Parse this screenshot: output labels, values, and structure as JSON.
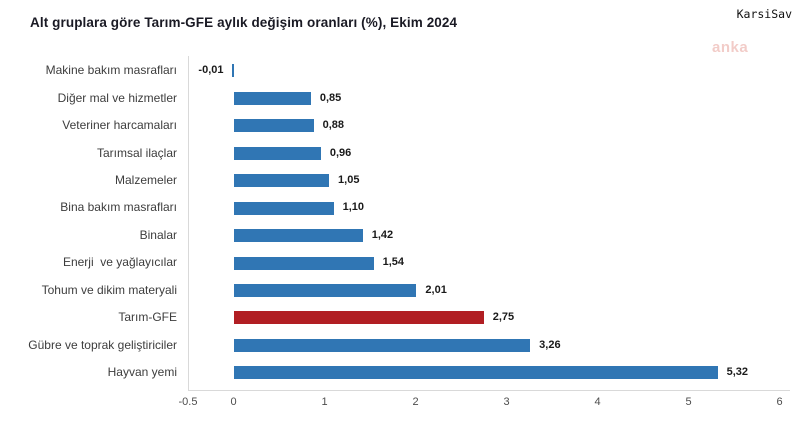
{
  "header": {
    "title": "Alt gruplara göre Tarım-GFE aylık değişim oranları (%), Ekim 2024",
    "source_label": "KarsiSav",
    "watermark": "anka"
  },
  "chart_data": {
    "type": "bar",
    "orientation": "horizontal",
    "title": "Alt gruplara göre Tarım-GFE aylık değişim oranları (%), Ekim 2024",
    "categories": [
      "Makine bakım masrafları",
      "Diğer mal ve hizmetler",
      "Veteriner harcamaları",
      "Tarımsal ilaçlar",
      "Malzemeler",
      "Bina bakım masrafları",
      "Binalar",
      "Enerji  ve yağlayıcılar",
      "Tohum ve dikim materyali",
      "Tarım-GFE",
      "Gübre ve toprak geliştiriciler",
      "Hayvan yemi"
    ],
    "values": [
      -0.01,
      0.85,
      0.88,
      0.96,
      1.05,
      1.1,
      1.42,
      1.54,
      2.01,
      2.75,
      3.26,
      5.32
    ],
    "value_labels": [
      "-0,01",
      "0,85",
      "0,88",
      "0,96",
      "1,05",
      "1,10",
      "1,42",
      "1,54",
      "2,01",
      "2,75",
      "3,26",
      "5,32"
    ],
    "highlight_category": "Tarım-GFE",
    "xlim": [
      -0.5,
      6
    ],
    "x_ticks": [
      {
        "v": -0.5,
        "label": "-0.5"
      },
      {
        "v": 0,
        "label": "0"
      },
      {
        "v": 1,
        "label": "1"
      },
      {
        "v": 2,
        "label": "2"
      },
      {
        "v": 3,
        "label": "3"
      },
      {
        "v": 4,
        "label": "4"
      },
      {
        "v": 5,
        "label": "5"
      },
      {
        "v": 6,
        "label": "6"
      }
    ],
    "xlabel": "",
    "ylabel": "",
    "grid": false,
    "legend": false,
    "colors": {
      "bar": "#3076b4",
      "highlight": "#b11e23",
      "axis_line": "#d9d9d9",
      "tick_text": "#4d4d4d",
      "value_text": "#1a1a1a",
      "category_text": "#3d3d3d",
      "title_text": "#1a1a24",
      "watermark_text": "rgba(222,120,110,0.38)"
    }
  }
}
